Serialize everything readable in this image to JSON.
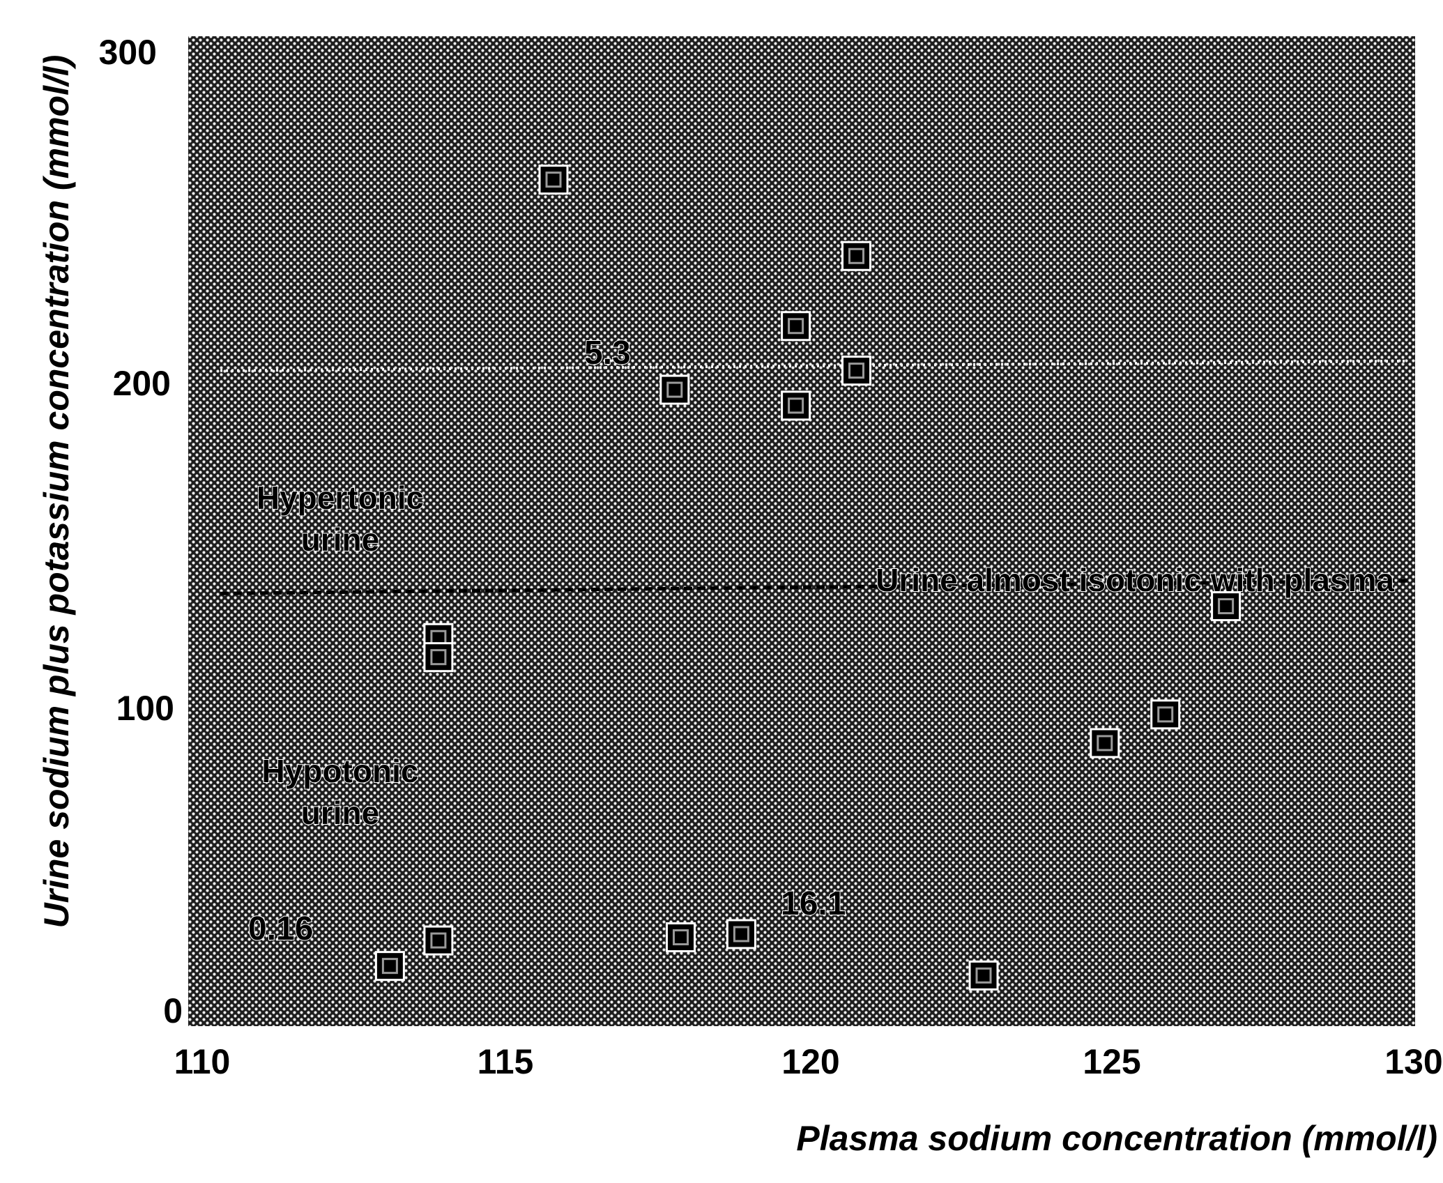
{
  "chart_data": {
    "type": "scatter",
    "title": "",
    "xlabel": "Plasma sodium concentration (mmol/l)",
    "ylabel": "Urine sodium plus potassium concentration (mmol/l)",
    "xlim": [
      110,
      130
    ],
    "ylim": [
      0,
      300
    ],
    "x_ticks": [
      "110",
      "115",
      "120",
      "125",
      "130"
    ],
    "y_ticks": [
      "0",
      "100",
      "200",
      "300"
    ],
    "grid": false,
    "background": "dotted-halftone",
    "reference_lines": [
      {
        "name": "hypertonic-boundary",
        "style": "dotted-white",
        "y": [
          200,
          203
        ]
      },
      {
        "name": "isotonic-boundary",
        "style": "dashed-black",
        "y": [
          130,
          134
        ],
        "label": "Urine almost isotonic with plasma"
      }
    ],
    "region_labels": [
      {
        "line1": "Hypertonic",
        "line2": "urine"
      },
      {
        "line1": "Hypotonic",
        "line2": "urine"
      }
    ],
    "point_labels": [
      "5.3",
      "16.1",
      "0.16"
    ],
    "points": [
      {
        "x": 115.8,
        "y": 260
      },
      {
        "x": 120.8,
        "y": 236
      },
      {
        "x": 119.8,
        "y": 214
      },
      {
        "x": 120.8,
        "y": 200
      },
      {
        "x": 117.8,
        "y": 194
      },
      {
        "x": 119.8,
        "y": 189
      },
      {
        "x": 126.9,
        "y": 126
      },
      {
        "x": 113.9,
        "y": 116
      },
      {
        "x": 113.9,
        "y": 110
      },
      {
        "x": 125.9,
        "y": 92
      },
      {
        "x": 124.9,
        "y": 83
      },
      {
        "x": 113.1,
        "y": 13
      },
      {
        "x": 113.9,
        "y": 21
      },
      {
        "x": 117.9,
        "y": 22
      },
      {
        "x": 118.9,
        "y": 23
      },
      {
        "x": 122.9,
        "y": 10
      }
    ]
  }
}
